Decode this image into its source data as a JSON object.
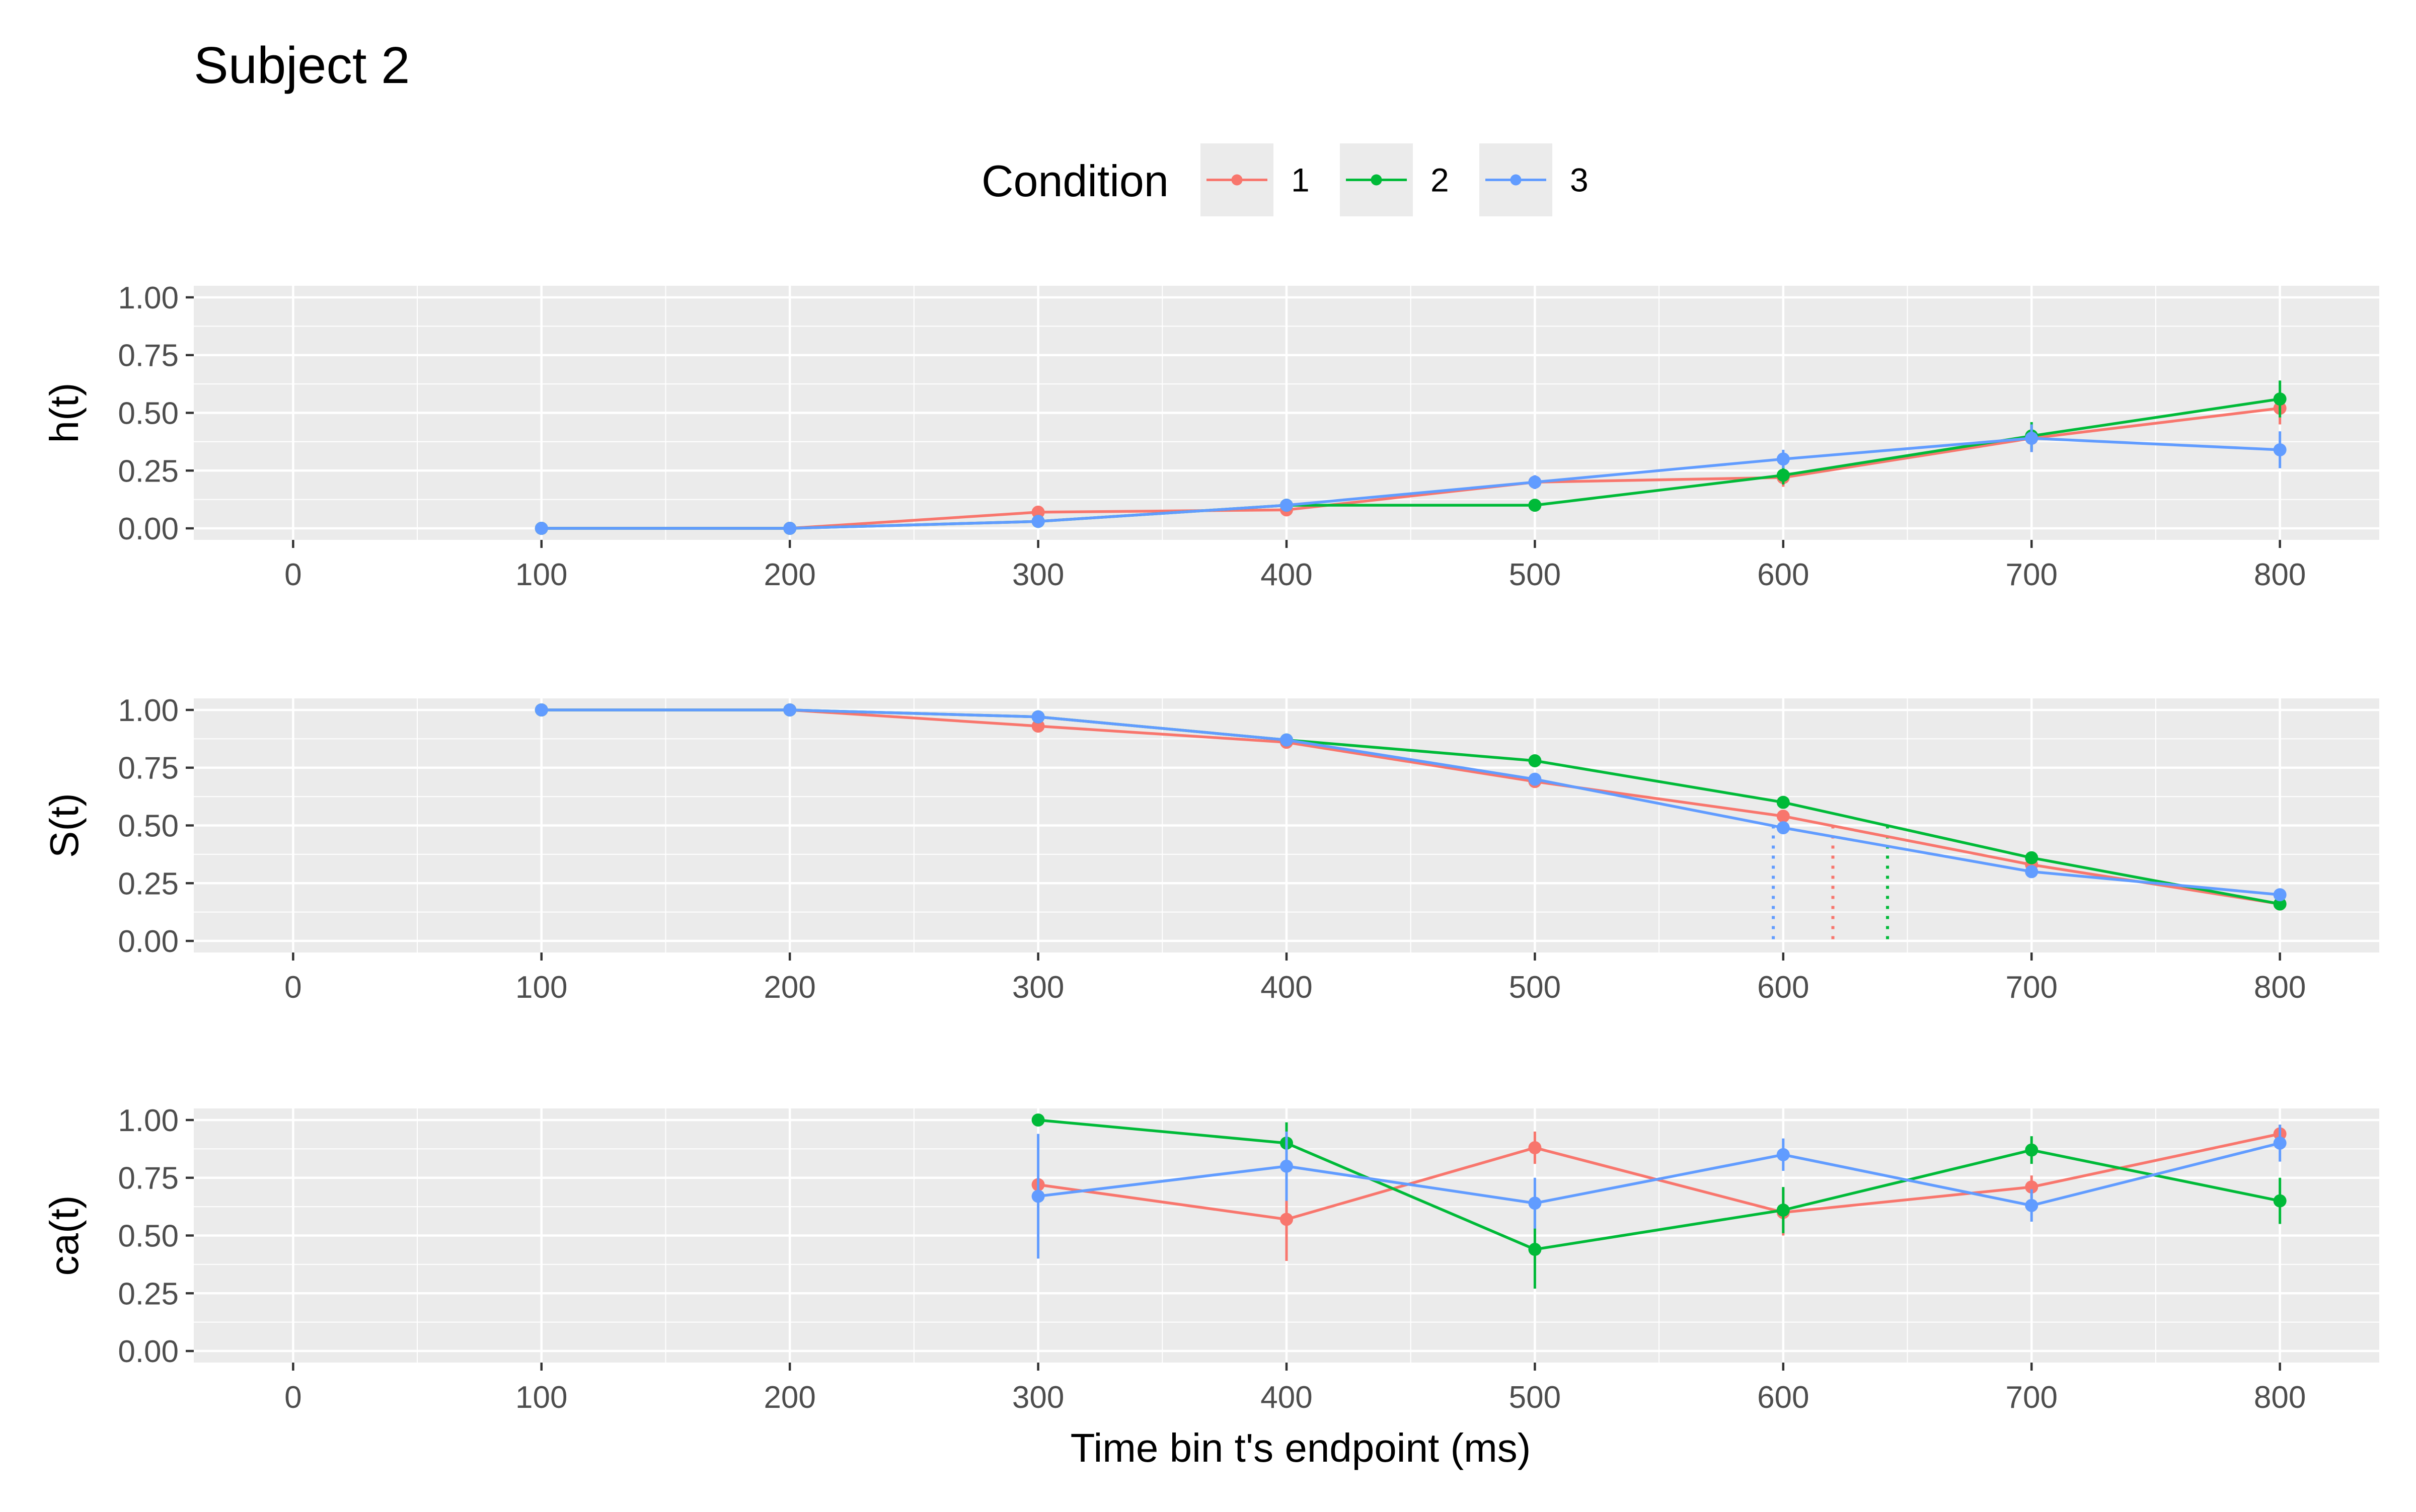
{
  "chart_data": {
    "type": "line",
    "title": "Subject  2",
    "xlabel": "Time bin t's endpoint (ms)",
    "xlim": [
      -40,
      840
    ],
    "x_ticks": [
      0,
      100,
      200,
      300,
      400,
      500,
      600,
      700,
      800
    ],
    "y_ticks": [
      0,
      0.25,
      0.5,
      0.75,
      1
    ],
    "y_tick_labels": [
      "0.00",
      "0.25",
      "0.50",
      "0.75",
      "1.00"
    ],
    "legend": {
      "title": "Condition",
      "position": "top",
      "entries": [
        "1",
        "2",
        "3"
      ]
    },
    "colors": {
      "1": "#F8766D",
      "2": "#00BA38",
      "3": "#619CFF",
      "panel_bg": "#EBEBEB",
      "grid": "#FFFFFF"
    },
    "panels": [
      {
        "ylabel": "h(t)",
        "ylim": [
          -0.05,
          1.05
        ],
        "series": [
          {
            "name": "1",
            "x": [
              100,
              200,
              300,
              400,
              500,
              600,
              700,
              800
            ],
            "y": [
              0,
              0,
              0.07,
              0.08,
              0.2,
              0.22,
              0.39,
              0.52
            ],
            "err": [
              0,
              0,
              0.02,
              0.02,
              0.03,
              0.04,
              0.06,
              0.07
            ]
          },
          {
            "name": "2",
            "x": [
              100,
              200,
              300,
              400,
              500,
              600,
              700,
              800
            ],
            "y": [
              0,
              0,
              0.03,
              0.1,
              0.1,
              0.23,
              0.4,
              0.56
            ],
            "err": [
              0,
              0,
              0.02,
              0.02,
              0.02,
              0.04,
              0.06,
              0.08
            ]
          },
          {
            "name": "3",
            "x": [
              100,
              200,
              300,
              400,
              500,
              600,
              700,
              800
            ],
            "y": [
              0,
              0,
              0.03,
              0.1,
              0.2,
              0.3,
              0.39,
              0.34
            ],
            "err": [
              0,
              0,
              0.02,
              0.02,
              0.03,
              0.04,
              0.06,
              0.08
            ]
          }
        ]
      },
      {
        "ylabel": "S(t)",
        "ylim": [
          -0.05,
          1.05
        ],
        "series": [
          {
            "name": "1",
            "x": [
              100,
              200,
              300,
              400,
              500,
              600,
              700,
              800
            ],
            "y": [
              1,
              1,
              0.93,
              0.86,
              0.69,
              0.54,
              0.33,
              0.16
            ],
            "err": [
              0,
              0,
              0.01,
              0.01,
              0.02,
              0.02,
              0.02,
              0.02
            ]
          },
          {
            "name": "2",
            "x": [
              100,
              200,
              300,
              400,
              500,
              600,
              700,
              800
            ],
            "y": [
              1,
              1,
              0.97,
              0.87,
              0.78,
              0.6,
              0.36,
              0.16
            ],
            "err": [
              0,
              0,
              0.01,
              0.01,
              0.02,
              0.02,
              0.02,
              0.02
            ]
          },
          {
            "name": "3",
            "x": [
              100,
              200,
              300,
              400,
              500,
              600,
              700,
              800
            ],
            "y": [
              1,
              1,
              0.97,
              0.87,
              0.7,
              0.49,
              0.3,
              0.2
            ],
            "err": [
              0,
              0,
              0.01,
              0.01,
              0.02,
              0.02,
              0.02,
              0.02
            ]
          }
        ],
        "median_lines": [
          {
            "series": "3",
            "x": 596,
            "y": 0.5
          },
          {
            "series": "1",
            "x": 620,
            "y": 0.5
          },
          {
            "series": "2",
            "x": 642,
            "y": 0.5
          }
        ]
      },
      {
        "ylabel": "ca(t)",
        "ylim": [
          -0.05,
          1.05
        ],
        "series": [
          {
            "name": "1",
            "x": [
              300,
              400,
              500,
              600,
              700,
              800
            ],
            "y": [
              0.72,
              0.57,
              0.88,
              0.6,
              0.71,
              0.94
            ],
            "err": [
              0,
              0.18,
              0.07,
              0.1,
              0.05,
              0.04
            ]
          },
          {
            "name": "2",
            "x": [
              300,
              400,
              500,
              600,
              700,
              800
            ],
            "y": [
              1,
              0.9,
              0.44,
              0.61,
              0.87,
              0.65
            ],
            "err": [
              0,
              0.09,
              0.17,
              0.1,
              0.06,
              0.1
            ]
          },
          {
            "name": "3",
            "x": [
              300,
              400,
              500,
              600,
              700,
              800
            ],
            "y": [
              0.67,
              0.8,
              0.64,
              0.85,
              0.63,
              0.9
            ],
            "err": [
              0.27,
              0.15,
              0.11,
              0.07,
              0.07,
              0.08
            ]
          }
        ]
      }
    ]
  }
}
